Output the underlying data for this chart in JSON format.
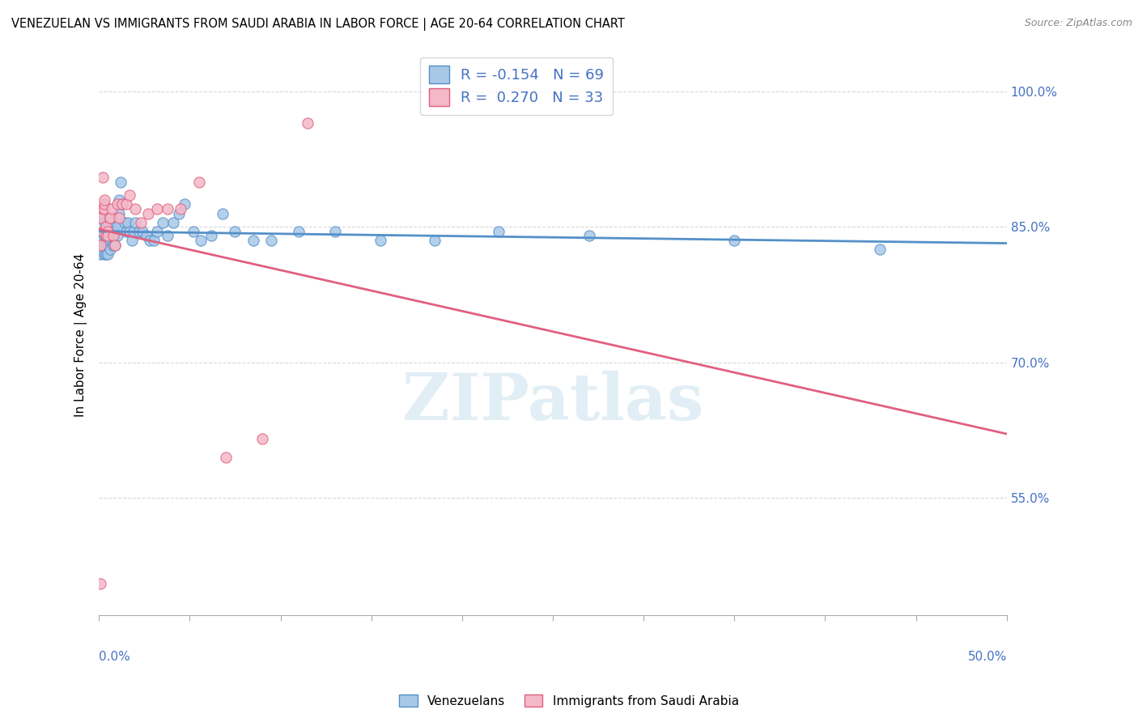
{
  "title": "VENEZUELAN VS IMMIGRANTS FROM SAUDI ARABIA IN LABOR FORCE | AGE 20-64 CORRELATION CHART",
  "source": "Source: ZipAtlas.com",
  "ylabel": "In Labor Force | Age 20-64",
  "legend_venezuelans": "Venezuelans",
  "legend_saudi": "Immigrants from Saudi Arabia",
  "R_venezuelan": "-0.154",
  "N_venezuelan": "69",
  "R_saudi": "0.270",
  "N_saudi": "33",
  "color_venezuelan": "#a8c8e8",
  "color_saudi": "#f4b8c8",
  "color_line_venezuelan": "#5590c8",
  "color_line_saudi": "#e06080",
  "color_text_blue": "#4472c4",
  "x_range": [
    0.0,
    0.5
  ],
  "y_range": [
    0.42,
    1.04
  ],
  "y_tick_vals": [
    0.55,
    0.7,
    0.85,
    1.0
  ],
  "y_tick_labs": [
    "55.0%",
    "70.0%",
    "85.0%",
    "100.0%"
  ],
  "watermark": "ZIPatlas",
  "background_color": "#ffffff",
  "grid_color": "#d8d8d8",
  "venezuelan_x": [
    0.001,
    0.001,
    0.002,
    0.002,
    0.002,
    0.003,
    0.003,
    0.003,
    0.003,
    0.004,
    0.004,
    0.004,
    0.004,
    0.004,
    0.005,
    0.005,
    0.005,
    0.005,
    0.005,
    0.006,
    0.006,
    0.006,
    0.007,
    0.007,
    0.007,
    0.008,
    0.008,
    0.008,
    0.009,
    0.009,
    0.01,
    0.01,
    0.011,
    0.011,
    0.012,
    0.013,
    0.014,
    0.015,
    0.016,
    0.017,
    0.018,
    0.019,
    0.02,
    0.022,
    0.024,
    0.026,
    0.028,
    0.03,
    0.032,
    0.035,
    0.038,
    0.041,
    0.044,
    0.047,
    0.052,
    0.056,
    0.062,
    0.068,
    0.075,
    0.085,
    0.095,
    0.11,
    0.13,
    0.155,
    0.185,
    0.22,
    0.27,
    0.35,
    0.43
  ],
  "venezuelan_y": [
    0.82,
    0.835,
    0.845,
    0.83,
    0.86,
    0.84,
    0.855,
    0.83,
    0.82,
    0.845,
    0.84,
    0.825,
    0.82,
    0.835,
    0.855,
    0.845,
    0.83,
    0.82,
    0.835,
    0.84,
    0.85,
    0.825,
    0.86,
    0.845,
    0.835,
    0.855,
    0.84,
    0.83,
    0.845,
    0.83,
    0.85,
    0.84,
    0.865,
    0.88,
    0.9,
    0.875,
    0.855,
    0.845,
    0.855,
    0.845,
    0.835,
    0.845,
    0.855,
    0.845,
    0.845,
    0.84,
    0.835,
    0.835,
    0.845,
    0.855,
    0.84,
    0.855,
    0.865,
    0.875,
    0.845,
    0.835,
    0.84,
    0.865,
    0.845,
    0.835,
    0.835,
    0.845,
    0.845,
    0.835,
    0.835,
    0.845,
    0.84,
    0.835,
    0.825
  ],
  "saudi_x": [
    0.001,
    0.001,
    0.001,
    0.002,
    0.002,
    0.002,
    0.003,
    0.003,
    0.003,
    0.004,
    0.004,
    0.005,
    0.005,
    0.006,
    0.006,
    0.007,
    0.008,
    0.009,
    0.01,
    0.011,
    0.013,
    0.015,
    0.017,
    0.02,
    0.023,
    0.027,
    0.032,
    0.038,
    0.045,
    0.055,
    0.07,
    0.09,
    0.115
  ],
  "saudi_y": [
    0.455,
    0.83,
    0.86,
    0.845,
    0.87,
    0.905,
    0.87,
    0.875,
    0.88,
    0.84,
    0.85,
    0.845,
    0.84,
    0.86,
    0.86,
    0.87,
    0.84,
    0.83,
    0.875,
    0.86,
    0.875,
    0.875,
    0.885,
    0.87,
    0.855,
    0.865,
    0.87,
    0.87,
    0.87,
    0.9,
    0.595,
    0.615,
    0.965
  ]
}
